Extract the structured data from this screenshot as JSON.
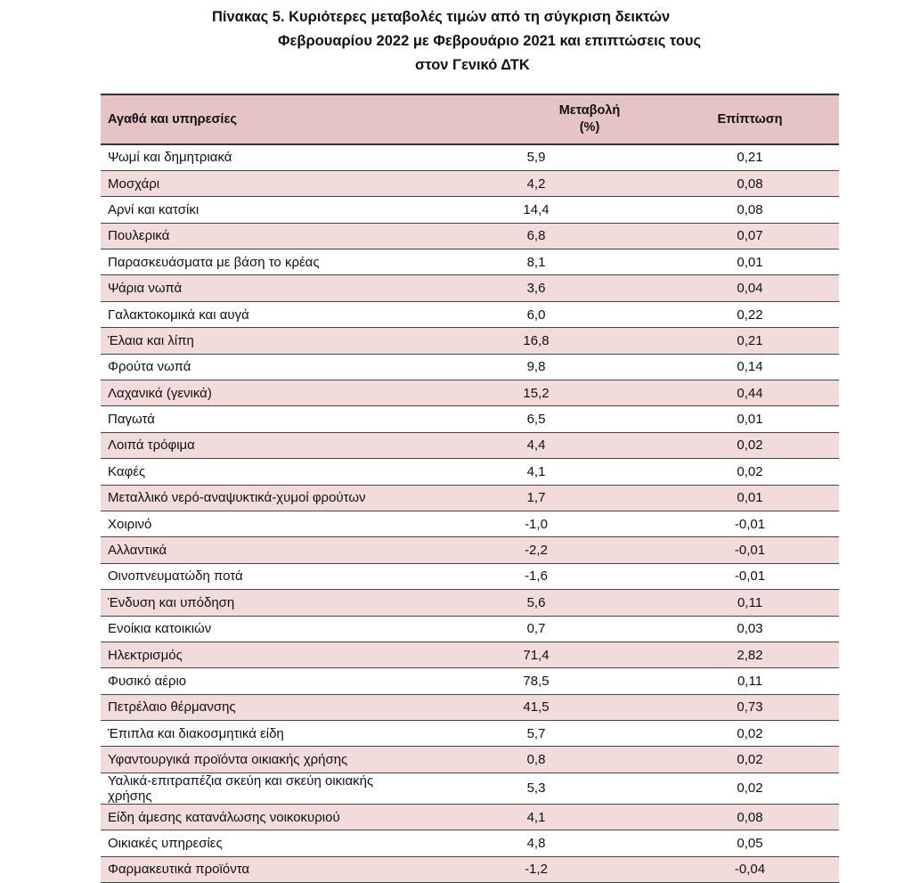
{
  "title": {
    "line1": "Πίνακας  5. Κυριότερες μεταβολές τιμών από τη σύγκριση δεικτών",
    "line2": "Φεβρουαρίου 2022 με Φεβρουάριο 2021 και επιπτώσεις τους",
    "line3": "στον Γενικό ΔΤΚ"
  },
  "table": {
    "headers": {
      "item": "Αγαθά και υπηρεσίες",
      "change_line1": "Μεταβολή",
      "change_line2": "(%)",
      "impact": "Επίπτωση"
    },
    "rows": [
      {
        "item": "Ψωμί και δημητριακά",
        "change": "5,9",
        "impact": "0,21"
      },
      {
        "item": "Μοσχάρι",
        "change": "4,2",
        "impact": "0,08"
      },
      {
        "item": "Αρνί και κατσίκι",
        "change": "14,4",
        "impact": "0,08"
      },
      {
        "item": "Πουλερικά",
        "change": "6,8",
        "impact": "0,07"
      },
      {
        "item": "Παρασκευάσματα με βάση το κρέας",
        "change": "8,1",
        "impact": "0,01"
      },
      {
        "item": "Ψάρια νωπά",
        "change": "3,6",
        "impact": "0,04"
      },
      {
        "item": "Γαλακτοκομικά και αυγά",
        "change": "6,0",
        "impact": "0,22"
      },
      {
        "item": "Έλαια και λίπη",
        "change": "16,8",
        "impact": "0,21"
      },
      {
        "item": "Φρούτα νωπά",
        "change": "9,8",
        "impact": "0,14"
      },
      {
        "item": "Λαχανικά (γενικά)",
        "change": "15,2",
        "impact": "0,44"
      },
      {
        "item": "Παγωτά",
        "change": "6,5",
        "impact": "0,01"
      },
      {
        "item": "Λοιπά τρόφιμα",
        "change": "4,4",
        "impact": "0,02"
      },
      {
        "item": "Καφές",
        "change": "4,1",
        "impact": "0,02"
      },
      {
        "item": "Μεταλλικό νερό-αναψυκτικά-χυμοί φρούτων",
        "change": "1,7",
        "impact": "0,01"
      },
      {
        "item": "Χοιρινό",
        "change": "-1,0",
        "impact": "-0,01"
      },
      {
        "item": "Αλλαντικά",
        "change": "-2,2",
        "impact": "-0,01"
      },
      {
        "item": "Οινοπνευματώδη ποτά",
        "change": "-1,6",
        "impact": "-0,01"
      },
      {
        "item": "Ένδυση και υπόδηση",
        "change": "5,6",
        "impact": "0,11"
      },
      {
        "item": "Ενοίκια κατοικιών",
        "change": "0,7",
        "impact": "0,03"
      },
      {
        "item": "Ηλεκτρισμός",
        "change": "71,4",
        "impact": "2,82"
      },
      {
        "item": "Φυσικό αέριο",
        "change": "78,5",
        "impact": "0,11"
      },
      {
        "item": "Πετρέλαιο θέρμανσης",
        "change": "41,5",
        "impact": "0,73"
      },
      {
        "item": "Έπιπλα και διακοσμητικά είδη",
        "change": "5,7",
        "impact": "0,02"
      },
      {
        "item": "Υφαντουργικά προϊόντα οικιακής χρήσης",
        "change": "0,8",
        "impact": "0,02"
      },
      {
        "item": "Υαλικά-επιτραπέζια σκεύη και σκεύη οικιακής χρήσης",
        "change": "5,3",
        "impact": "0,02"
      },
      {
        "item": "Είδη άμεσης κατανάλωσης νοικοκυριού",
        "change": "4,1",
        "impact": "0,08"
      },
      {
        "item": "Οικιακές υπηρεσίες",
        "change": "4,8",
        "impact": "0,05"
      },
      {
        "item": "Φαρμακευτικά προϊόντα",
        "change": "-1,2",
        "impact": "-0,04"
      }
    ]
  }
}
